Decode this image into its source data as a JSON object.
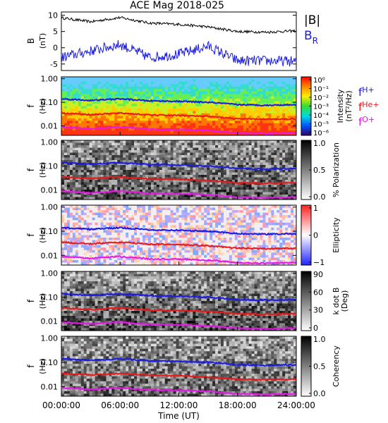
{
  "title": "ACE Mag 2018-025",
  "chart_data": [
    {
      "type": "line",
      "panel": "magnetic-field",
      "ylabel": "B",
      "yunit": "(nT)",
      "ylim": [
        -7,
        11
      ],
      "yticks": [
        "10",
        "5",
        "0",
        "-5"
      ],
      "x": [
        "00:00:00",
        "03:00:00",
        "06:00:00",
        "09:00:00",
        "12:00:00",
        "15:00:00",
        "18:00:00",
        "21:00:00",
        "24:00:00"
      ],
      "series": [
        {
          "name": "|B|",
          "color": "#000000",
          "values": [
            9.2,
            8.0,
            9.3,
            7.6,
            7.2,
            6.4,
            5.0,
            4.8,
            5.2
          ]
        },
        {
          "name": "B",
          "subscript": "R",
          "color": "#1a1ae6",
          "values": [
            -3.0,
            -1.0,
            1.0,
            -3.0,
            -2.0,
            0.5,
            -4.0,
            -4.0,
            -4.2
          ]
        }
      ]
    },
    {
      "type": "heatmap",
      "panel": "intensity",
      "ylabel": "f",
      "yunit": "(Hz)",
      "yscale": "log",
      "yticks": [
        "1.00",
        "0.10",
        "0.01"
      ],
      "colorbar": {
        "label": "Intensity",
        "unit": "(nT²/Hz)",
        "ticks": [
          "10⁰",
          "10⁻¹",
          "10⁻²",
          "10⁻³",
          "10⁻⁴",
          "10⁻⁵",
          "10⁻⁶"
        ],
        "palette": "rainbow"
      }
    },
    {
      "type": "heatmap",
      "panel": "polarization",
      "ylabel": "f",
      "yunit": "(Hz)",
      "yscale": "log",
      "yticks": [
        "1.00",
        "0.10",
        "0.01"
      ],
      "colorbar": {
        "label": "% Polarization",
        "ticks": [
          "1.0",
          "0.5",
          "0.0"
        ],
        "palette": "gray"
      }
    },
    {
      "type": "heatmap",
      "panel": "ellipticity",
      "ylabel": "f",
      "yunit": "(Hz)",
      "yscale": "log",
      "yticks": [
        "1.00",
        "0.10",
        "0.01"
      ],
      "colorbar": {
        "label": "Ellipticity",
        "ticks": [
          "1",
          "0",
          "−1"
        ],
        "palette": "bwr"
      }
    },
    {
      "type": "heatmap",
      "panel": "k-dot-b",
      "ylabel": "f",
      "yunit": "(Hz)",
      "yscale": "log",
      "yticks": [
        "1.00",
        "0.10",
        "0.01"
      ],
      "colorbar": {
        "label": "k dot B",
        "unit": "(Deg)",
        "ticks": [
          "90",
          "60",
          "30",
          "0"
        ],
        "palette": "gray"
      }
    },
    {
      "type": "heatmap",
      "panel": "coherency",
      "ylabel": "f",
      "yunit": "(Hz)",
      "yscale": "log",
      "yticks": [
        "1.00",
        "0.10",
        "0.01"
      ],
      "colorbar": {
        "label": "Coherency",
        "ticks": [
          "1.0",
          "0.5",
          "0.0"
        ],
        "palette": "gray"
      }
    }
  ],
  "cyclotron_lines": [
    {
      "name": "f",
      "subscript": "H+",
      "color": "#1a1ae6",
      "values_hz": [
        0.14,
        0.12,
        0.14,
        0.115,
        0.11,
        0.1,
        0.08,
        0.075,
        0.08
      ]
    },
    {
      "name": "f",
      "subscript": "He+",
      "color": "#e61a1a",
      "values_hz": [
        0.035,
        0.03,
        0.035,
        0.029,
        0.028,
        0.025,
        0.02,
        0.019,
        0.02
      ]
    },
    {
      "name": "f",
      "subscript": "O+",
      "color": "#e619e6",
      "values_hz": [
        0.009,
        0.0075,
        0.009,
        0.0072,
        0.007,
        0.0063,
        0.005,
        0.0047,
        0.005
      ]
    }
  ],
  "xaxis": {
    "label": "Time (UT)",
    "ticks": [
      "00:00:00",
      "06:00:00",
      "12:00:00",
      "18:00:00",
      "24:00:00"
    ]
  }
}
